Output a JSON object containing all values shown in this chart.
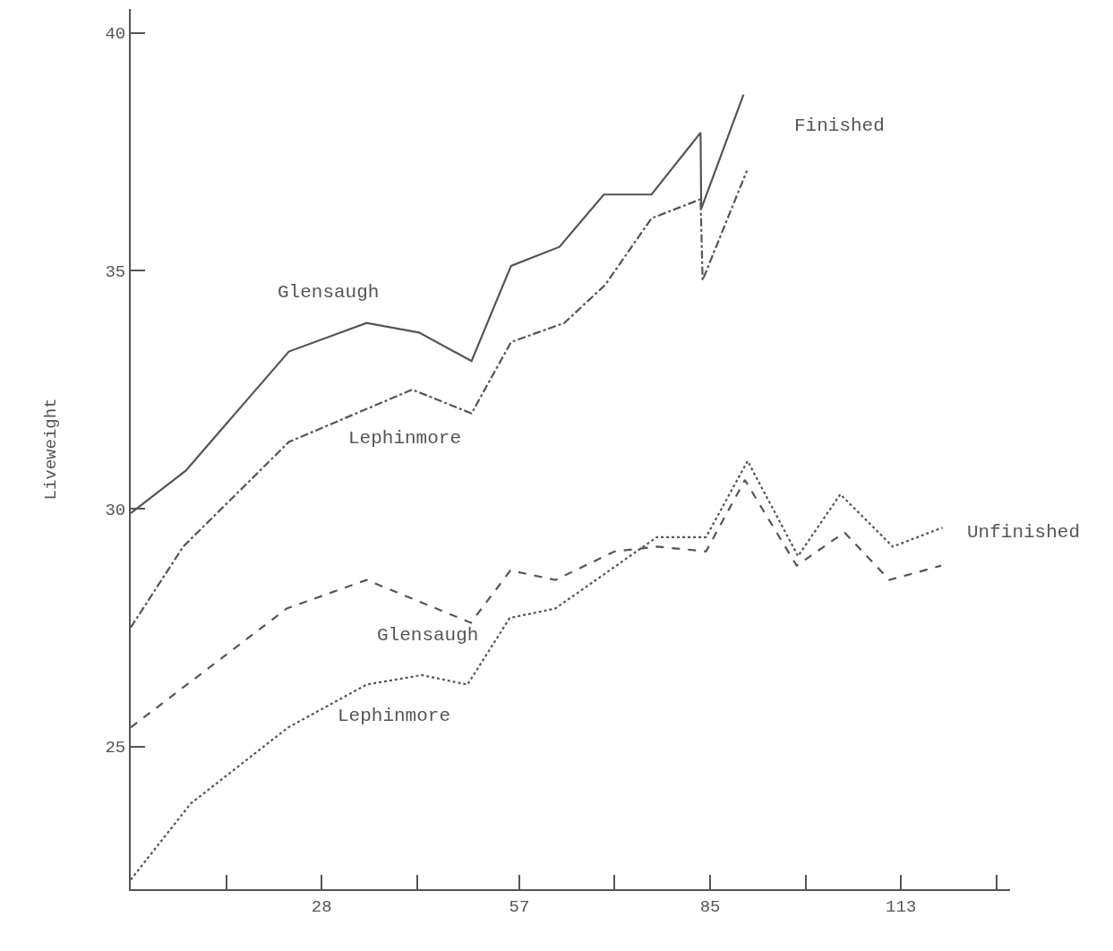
{
  "chart_data": {
    "type": "line",
    "ylabel": "Liveweight",
    "xlim": [
      0,
      129
    ],
    "ylim": [
      22,
      40.5
    ],
    "xticks": [
      {
        "value": 14,
        "label": null
      },
      28,
      {
        "value": 42,
        "label": null
      },
      57,
      {
        "value": 71,
        "label": null
      },
      85,
      {
        "value": 99,
        "label": null
      },
      113,
      {
        "value": 127,
        "label": null
      }
    ],
    "yticks": [
      25,
      30,
      35,
      40
    ],
    "legend": false,
    "marker": "none",
    "series": [
      {
        "name": "Glensaugh",
        "color": "#555555",
        "line_style": "solid",
        "x": [
          0,
          8.1,
          23.2,
          34.6,
          42.3,
          50,
          55.8,
          62.9,
          69.4,
          76.4,
          83.6,
          83.7,
          89.9
        ],
        "values": [
          29.9,
          30.8,
          33.3,
          33.9,
          33.7,
          33.1,
          35.1,
          35.5,
          36.6,
          36.6,
          37.9,
          36.3,
          38.7
        ]
      },
      {
        "name": "Lephinmore",
        "color": "#555555",
        "line_style": "dashdot",
        "x": [
          0,
          7.7,
          23.2,
          41.3,
          50,
          55.8,
          63.6,
          69.6,
          76.4,
          83.6,
          83.9,
          90.4
        ],
        "values": [
          27.5,
          29.2,
          31.4,
          32.5,
          32.0,
          33.5,
          33.9,
          34.7,
          36.1,
          36.5,
          34.8,
          37.1
        ]
      },
      {
        "name": "Glensaugh",
        "color": "#555555",
        "line_style": "dashed",
        "x": [
          0,
          22.9,
          34.6,
          49.9,
          55.7,
          62.3,
          71.0,
          77.2,
          84.4,
          90.1,
          97.7,
          104.7,
          111.3,
          118.9
        ],
        "values": [
          25.4,
          27.9,
          28.5,
          27.6,
          28.7,
          28.5,
          29.1,
          29.2,
          29.1,
          30.6,
          28.8,
          29.5,
          28.5,
          28.8
        ]
      },
      {
        "name": "Lephinmore",
        "color": "#555555",
        "line_style": "dotted",
        "x": [
          0,
          8.8,
          23.1,
          34.6,
          42.7,
          49.4,
          55.6,
          62.3,
          77.2,
          84.4,
          90.5,
          97.9,
          104.1,
          111.8,
          119.1
        ],
        "values": [
          22.2,
          23.8,
          25.4,
          26.3,
          26.5,
          26.3,
          27.7,
          27.9,
          29.4,
          29.4,
          31.0,
          29.0,
          30.3,
          29.2,
          29.6
        ]
      }
    ],
    "annotations": [
      "Finished",
      "Unfinished"
    ]
  }
}
